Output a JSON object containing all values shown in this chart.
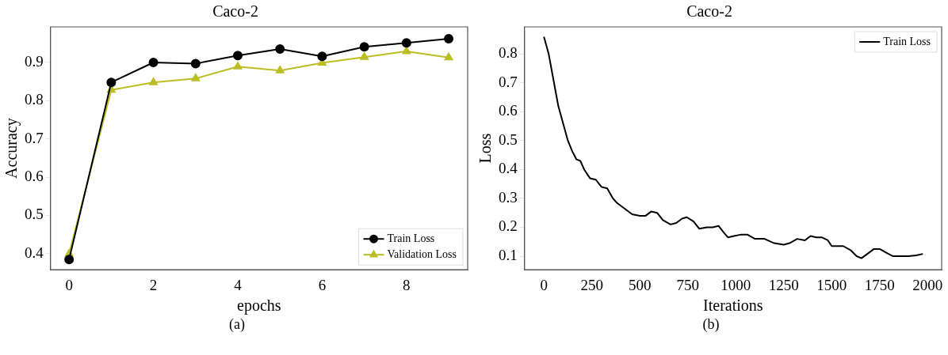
{
  "chart_data": [
    {
      "type": "line",
      "title": "Caco-2",
      "xlabel": "epochs",
      "ylabel": "Accuracy",
      "x": [
        0,
        1,
        2,
        3,
        4,
        5,
        6,
        7,
        8,
        9
      ],
      "series": [
        {
          "name": "Train Loss",
          "color": "#000000",
          "marker": "circle",
          "values": [
            0.385,
            0.848,
            0.9,
            0.897,
            0.918,
            0.935,
            0.916,
            0.941,
            0.951,
            0.962
          ]
        },
        {
          "name": "Validation Loss",
          "color": "#bcbd22",
          "marker": "triangle",
          "values": [
            0.4,
            0.828,
            0.848,
            0.858,
            0.889,
            0.879,
            0.899,
            0.914,
            0.929,
            0.913
          ]
        }
      ],
      "xlim": [
        -0.44,
        9.45
      ],
      "xticks": [
        0,
        2,
        4,
        6,
        8
      ],
      "ylim": [
        0.358,
        0.993
      ],
      "yticks": [
        0.4,
        0.5,
        0.6,
        0.7,
        0.8,
        0.9
      ],
      "grid": false,
      "legend": "bottom right",
      "line_style": "solid",
      "annotations": [
        "(a)"
      ]
    },
    {
      "type": "line",
      "title": "Caco-2",
      "xlabel": "Iterations",
      "ylabel": "Loss",
      "marker": "none",
      "line_style": "solid",
      "grid": false,
      "legend": "top right",
      "x": [
        0,
        25,
        50,
        75,
        100,
        125,
        150,
        170,
        190,
        210,
        240,
        270,
        300,
        330,
        360,
        380,
        420,
        460,
        500,
        530,
        560,
        590,
        620,
        660,
        690,
        720,
        745,
        780,
        810,
        850,
        880,
        910,
        940,
        960,
        990,
        1030,
        1060,
        1100,
        1150,
        1200,
        1250,
        1280,
        1320,
        1360,
        1390,
        1420,
        1450,
        1480,
        1500,
        1540,
        1560,
        1600,
        1630,
        1655,
        1690,
        1720,
        1750,
        1790,
        1820,
        1860,
        1900,
        1940,
        1975
      ],
      "series": [
        {
          "name": "Train Loss",
          "color": "#000000",
          "values": [
            0.86,
            0.8,
            0.71,
            0.62,
            0.56,
            0.5,
            0.46,
            0.435,
            0.43,
            0.4,
            0.37,
            0.365,
            0.34,
            0.335,
            0.3,
            0.285,
            0.265,
            0.245,
            0.24,
            0.24,
            0.255,
            0.25,
            0.225,
            0.21,
            0.215,
            0.23,
            0.235,
            0.22,
            0.195,
            0.2,
            0.2,
            0.205,
            0.18,
            0.165,
            0.17,
            0.175,
            0.175,
            0.16,
            0.16,
            0.145,
            0.14,
            0.145,
            0.16,
            0.155,
            0.17,
            0.165,
            0.165,
            0.155,
            0.135,
            0.135,
            0.135,
            0.12,
            0.1,
            0.093,
            0.11,
            0.125,
            0.125,
            0.11,
            0.1,
            0.1,
            0.1,
            0.103,
            0.108
          ]
        }
      ],
      "xlim": [
        -101,
        2073
      ],
      "xticks": [
        0,
        250,
        500,
        750,
        1000,
        1250,
        1500,
        1750,
        2000
      ],
      "ylim": [
        0.053,
        0.894
      ],
      "yticks": [
        0.1,
        0.2,
        0.3,
        0.4,
        0.5,
        0.6,
        0.7,
        0.8
      ],
      "annotations": [
        "(b)"
      ]
    }
  ]
}
